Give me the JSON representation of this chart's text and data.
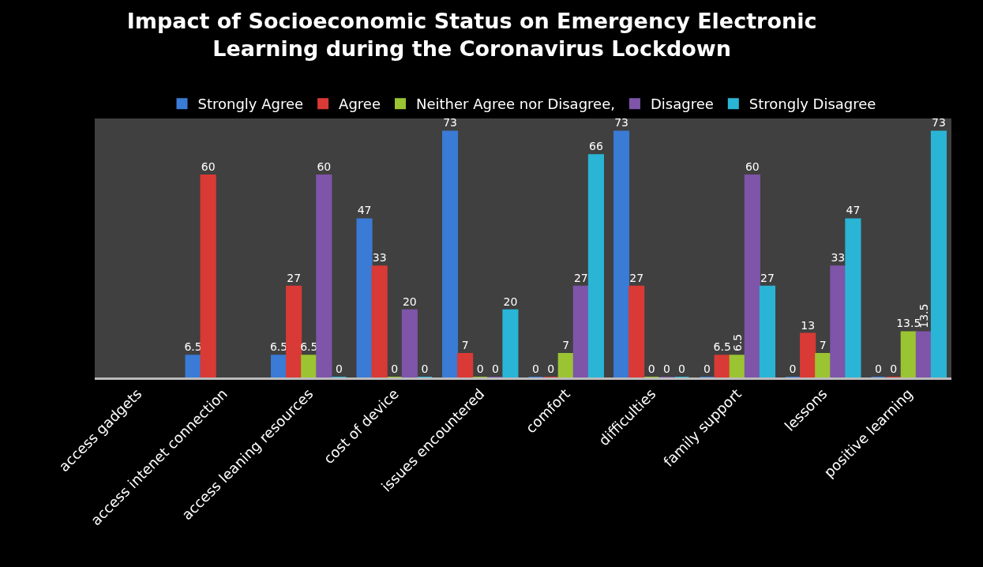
{
  "chart_data": {
    "type": "bar",
    "title": "Impact of Socioeconomic Status on Emergency Electronic\nLearning during the Coronavirus Lockdown",
    "categories": [
      "access gadgets",
      "access intenet connection",
      "access leaning resources",
      "cost of device",
      "issues encountered",
      "comfort",
      "difficulties",
      "family support",
      "lessons",
      "positive learning"
    ],
    "series": [
      {
        "name": "Strongly Agree",
        "color": "#3a7bd5",
        "values": [
          null,
          6.5,
          6.5,
          47,
          73,
          0,
          73,
          0,
          0,
          0
        ]
      },
      {
        "name": "Agree",
        "color": "#d93a35",
        "values": [
          null,
          60,
          27,
          33,
          7,
          0,
          27,
          6.5,
          13,
          0
        ]
      },
      {
        "name": "Neither Agree nor Disagree,",
        "color": "#9bc432",
        "values": [
          null,
          null,
          6.5,
          0,
          0,
          7,
          0,
          6.5,
          7,
          13.5
        ]
      },
      {
        "name": "Disagree",
        "color": "#7e55a8",
        "values": [
          null,
          null,
          60,
          20,
          0,
          27,
          0,
          60,
          33,
          13.5
        ]
      },
      {
        "name": "Strongly Disagree",
        "color": "#2ab5d6",
        "values": [
          null,
          null,
          0,
          0,
          20,
          66,
          0,
          27,
          47,
          73
        ]
      }
    ],
    "data_labels": true,
    "legend": "top",
    "grid": false
  }
}
